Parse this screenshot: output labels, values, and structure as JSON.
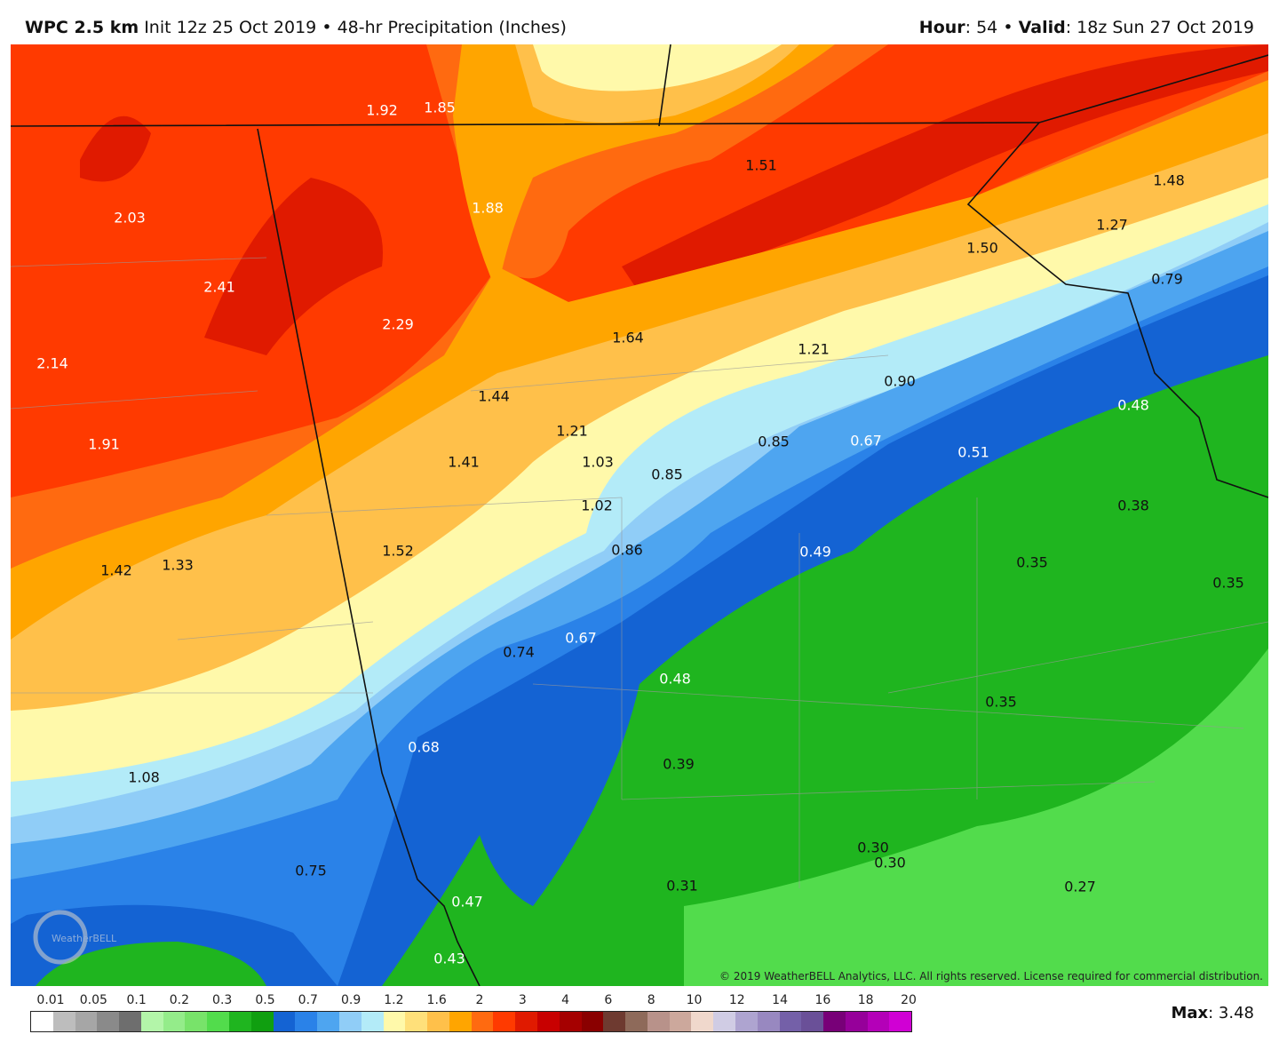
{
  "header": {
    "model": "WPC 2.5 km",
    "init": "Init 12z 25 Oct 2019",
    "separator": "•",
    "product": "48-hr Precipitation (Inches)",
    "hour_label": "Hour",
    "hour": ": 54",
    "valid_label": "Valid",
    "valid": ": 18z Sun 27 Oct 2019"
  },
  "map": {
    "labels": [
      "1.92",
      "1.85",
      "1.51",
      "1.48",
      "2.03",
      "1.88",
      "1.27",
      "1.50",
      "2.41",
      "0.79",
      "2.29",
      "1.64",
      "1.21",
      "2.14",
      "0.90",
      "1.44",
      "0.48",
      "1.21",
      "0.85",
      "0.67",
      "1.91",
      "1.41",
      "1.03",
      "0.51",
      "0.85",
      "1.02",
      "0.38",
      "0.86",
      "1.52",
      "0.49",
      "0.35",
      "1.42",
      "1.33",
      "0.35",
      "0.67",
      "0.74",
      "0.48",
      "0.35",
      "0.68",
      "0.39",
      "1.08",
      "0.30",
      "0.30",
      "0.75",
      "0.31",
      "0.27",
      "0.47",
      "0.43"
    ],
    "logo": "WeatherBELL"
  },
  "copyright": "© 2019 WeatherBELL Analytics, LLC. All rights reserved. License required for commercial distribution.",
  "colorbar": {
    "labels": [
      "0.01",
      "0.05",
      "0.1",
      "0.2",
      "0.3",
      "0.5",
      "0.7",
      "0.9",
      "1.2",
      "1.6",
      "2",
      "3",
      "4",
      "6",
      "8",
      "10",
      "12",
      "14",
      "16",
      "18",
      "20"
    ],
    "colors": [
      "#ffffff",
      "#bdbdbd",
      "#a6a6a6",
      "#8a8a8a",
      "#6e6e6e",
      "#b3f5a9",
      "#94ec8a",
      "#78e36a",
      "#52dc4c",
      "#1fb51f",
      "#109f10",
      "#1463d3",
      "#2a82e8",
      "#4ea5f0",
      "#90cdf7",
      "#b3ebf8",
      "#fff9aa",
      "#ffe07a",
      "#ffc04a",
      "#ffa500",
      "#ff6a10",
      "#ff3a00",
      "#e01a00",
      "#c80000",
      "#a50000",
      "#8a0000",
      "#6e3a30",
      "#8e6a5a",
      "#b8928a",
      "#cca89c",
      "#f0d8cc",
      "#d0cce4",
      "#aea4d0",
      "#9888c0",
      "#7460a8",
      "#6a5098",
      "#780078",
      "#96009a",
      "#b400b8",
      "#d000d4"
    ]
  },
  "max": {
    "label": "Max",
    "value": ": 3.48"
  }
}
